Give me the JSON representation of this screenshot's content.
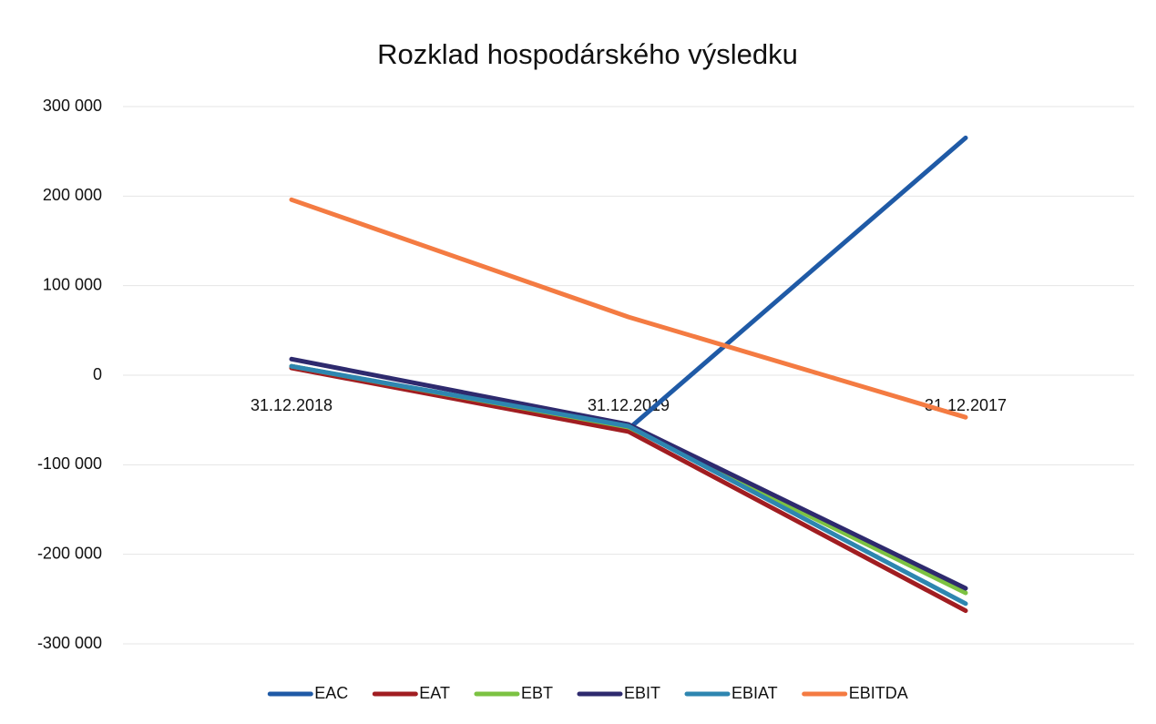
{
  "chart_data": {
    "type": "line",
    "title": "Rozklad hospodárského výsledku",
    "categories": [
      "31.12.2018",
      "31.12.2019",
      "31.12.2017"
    ],
    "series": [
      {
        "name": "EAC",
        "color": "#1f5aa6",
        "values": [
          10000,
          -60000,
          265000
        ]
      },
      {
        "name": "EAT",
        "color": "#a11d21",
        "values": [
          8000,
          -63000,
          -263000
        ]
      },
      {
        "name": "EBT",
        "color": "#7cc242",
        "values": [
          10000,
          -58000,
          -243000
        ]
      },
      {
        "name": "EBIT",
        "color": "#2e2a6e",
        "values": [
          18000,
          -55000,
          -238000
        ]
      },
      {
        "name": "EBIAT",
        "color": "#2e86b0",
        "values": [
          10000,
          -57000,
          -255000
        ]
      },
      {
        "name": "EBITDA",
        "color": "#f47b42",
        "values": [
          196000,
          65000,
          -47000
        ]
      }
    ],
    "ylim": [
      -300000,
      300000
    ],
    "yticks": [
      {
        "value": -300000,
        "label": "-300 000"
      },
      {
        "value": -200000,
        "label": "-200 000"
      },
      {
        "value": -100000,
        "label": "-100 000"
      },
      0,
      {
        "value": 100000,
        "label": "100 000"
      },
      {
        "value": 200000,
        "label": "200 000"
      },
      {
        "value": 300000,
        "label": "300 000"
      }
    ],
    "grid": true,
    "legend": "bottom"
  }
}
